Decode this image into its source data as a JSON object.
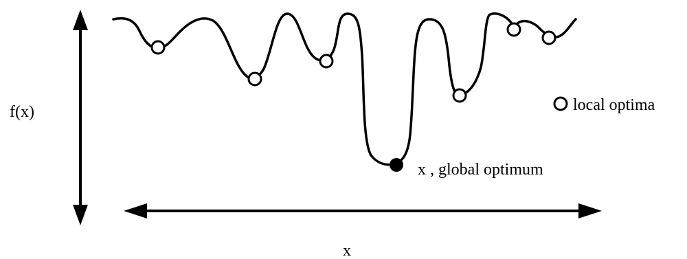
{
  "labels": {
    "y_axis": "f(x)",
    "x_axis": "x",
    "legend_local": "local optima",
    "global": "x , global optimum"
  },
  "colors": {
    "stroke": "#000000",
    "local_fill": "#ffffff",
    "global_fill": "#000000"
  }
}
